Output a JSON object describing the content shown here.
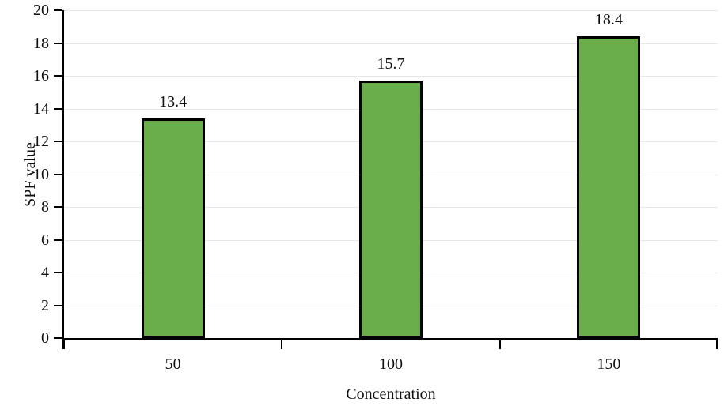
{
  "chart_data": {
    "type": "bar",
    "title": "",
    "categories": [
      "50",
      "100",
      "150"
    ],
    "values": [
      13.4,
      15.7,
      18.4
    ],
    "value_labels": [
      "13.4",
      "15.7",
      "18.4"
    ],
    "xlabel": "Concentration",
    "ylabel": "SPF value",
    "ylim": [
      0,
      20
    ],
    "yticks": [
      0,
      2,
      4,
      6,
      8,
      10,
      12,
      14,
      16,
      18,
      20
    ],
    "grid": "horizontal",
    "legend": "none",
    "colors": {
      "bar_fill": "#6aad4b",
      "bar_border": "#000000",
      "gridline": "#e7e7e7",
      "axis": "#000000",
      "text": "#111111",
      "background": "#ffffff"
    }
  }
}
